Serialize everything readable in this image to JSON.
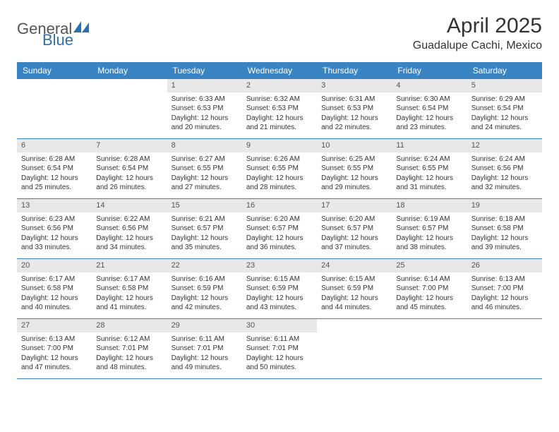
{
  "logo": {
    "text1": "General",
    "text2": "Blue",
    "color1": "#6b6b6b",
    "color2": "#2f6fb0",
    "accent": "#2f6fb0"
  },
  "title": "April 2025",
  "location": "Guadalupe Cachi, Mexico",
  "header_bg": "#3b84c4",
  "daynum_bg": "#e8e8e8",
  "border_color": "#3b84c4",
  "weekdays": [
    "Sunday",
    "Monday",
    "Tuesday",
    "Wednesday",
    "Thursday",
    "Friday",
    "Saturday"
  ],
  "weeks": [
    [
      {
        "n": "",
        "lines": []
      },
      {
        "n": "",
        "lines": []
      },
      {
        "n": "1",
        "lines": [
          "Sunrise: 6:33 AM",
          "Sunset: 6:53 PM",
          "Daylight: 12 hours and 20 minutes."
        ]
      },
      {
        "n": "2",
        "lines": [
          "Sunrise: 6:32 AM",
          "Sunset: 6:53 PM",
          "Daylight: 12 hours and 21 minutes."
        ]
      },
      {
        "n": "3",
        "lines": [
          "Sunrise: 6:31 AM",
          "Sunset: 6:53 PM",
          "Daylight: 12 hours and 22 minutes."
        ]
      },
      {
        "n": "4",
        "lines": [
          "Sunrise: 6:30 AM",
          "Sunset: 6:54 PM",
          "Daylight: 12 hours and 23 minutes."
        ]
      },
      {
        "n": "5",
        "lines": [
          "Sunrise: 6:29 AM",
          "Sunset: 6:54 PM",
          "Daylight: 12 hours and 24 minutes."
        ]
      }
    ],
    [
      {
        "n": "6",
        "lines": [
          "Sunrise: 6:28 AM",
          "Sunset: 6:54 PM",
          "Daylight: 12 hours and 25 minutes."
        ]
      },
      {
        "n": "7",
        "lines": [
          "Sunrise: 6:28 AM",
          "Sunset: 6:54 PM",
          "Daylight: 12 hours and 26 minutes."
        ]
      },
      {
        "n": "8",
        "lines": [
          "Sunrise: 6:27 AM",
          "Sunset: 6:55 PM",
          "Daylight: 12 hours and 27 minutes."
        ]
      },
      {
        "n": "9",
        "lines": [
          "Sunrise: 6:26 AM",
          "Sunset: 6:55 PM",
          "Daylight: 12 hours and 28 minutes."
        ]
      },
      {
        "n": "10",
        "lines": [
          "Sunrise: 6:25 AM",
          "Sunset: 6:55 PM",
          "Daylight: 12 hours and 29 minutes."
        ]
      },
      {
        "n": "11",
        "lines": [
          "Sunrise: 6:24 AM",
          "Sunset: 6:55 PM",
          "Daylight: 12 hours and 31 minutes."
        ]
      },
      {
        "n": "12",
        "lines": [
          "Sunrise: 6:24 AM",
          "Sunset: 6:56 PM",
          "Daylight: 12 hours and 32 minutes."
        ]
      }
    ],
    [
      {
        "n": "13",
        "lines": [
          "Sunrise: 6:23 AM",
          "Sunset: 6:56 PM",
          "Daylight: 12 hours and 33 minutes."
        ]
      },
      {
        "n": "14",
        "lines": [
          "Sunrise: 6:22 AM",
          "Sunset: 6:56 PM",
          "Daylight: 12 hours and 34 minutes."
        ]
      },
      {
        "n": "15",
        "lines": [
          "Sunrise: 6:21 AM",
          "Sunset: 6:57 PM",
          "Daylight: 12 hours and 35 minutes."
        ]
      },
      {
        "n": "16",
        "lines": [
          "Sunrise: 6:20 AM",
          "Sunset: 6:57 PM",
          "Daylight: 12 hours and 36 minutes."
        ]
      },
      {
        "n": "17",
        "lines": [
          "Sunrise: 6:20 AM",
          "Sunset: 6:57 PM",
          "Daylight: 12 hours and 37 minutes."
        ]
      },
      {
        "n": "18",
        "lines": [
          "Sunrise: 6:19 AM",
          "Sunset: 6:57 PM",
          "Daylight: 12 hours and 38 minutes."
        ]
      },
      {
        "n": "19",
        "lines": [
          "Sunrise: 6:18 AM",
          "Sunset: 6:58 PM",
          "Daylight: 12 hours and 39 minutes."
        ]
      }
    ],
    [
      {
        "n": "20",
        "lines": [
          "Sunrise: 6:17 AM",
          "Sunset: 6:58 PM",
          "Daylight: 12 hours and 40 minutes."
        ]
      },
      {
        "n": "21",
        "lines": [
          "Sunrise: 6:17 AM",
          "Sunset: 6:58 PM",
          "Daylight: 12 hours and 41 minutes."
        ]
      },
      {
        "n": "22",
        "lines": [
          "Sunrise: 6:16 AM",
          "Sunset: 6:59 PM",
          "Daylight: 12 hours and 42 minutes."
        ]
      },
      {
        "n": "23",
        "lines": [
          "Sunrise: 6:15 AM",
          "Sunset: 6:59 PM",
          "Daylight: 12 hours and 43 minutes."
        ]
      },
      {
        "n": "24",
        "lines": [
          "Sunrise: 6:15 AM",
          "Sunset: 6:59 PM",
          "Daylight: 12 hours and 44 minutes."
        ]
      },
      {
        "n": "25",
        "lines": [
          "Sunrise: 6:14 AM",
          "Sunset: 7:00 PM",
          "Daylight: 12 hours and 45 minutes."
        ]
      },
      {
        "n": "26",
        "lines": [
          "Sunrise: 6:13 AM",
          "Sunset: 7:00 PM",
          "Daylight: 12 hours and 46 minutes."
        ]
      }
    ],
    [
      {
        "n": "27",
        "lines": [
          "Sunrise: 6:13 AM",
          "Sunset: 7:00 PM",
          "Daylight: 12 hours and 47 minutes."
        ]
      },
      {
        "n": "28",
        "lines": [
          "Sunrise: 6:12 AM",
          "Sunset: 7:01 PM",
          "Daylight: 12 hours and 48 minutes."
        ]
      },
      {
        "n": "29",
        "lines": [
          "Sunrise: 6:11 AM",
          "Sunset: 7:01 PM",
          "Daylight: 12 hours and 49 minutes."
        ]
      },
      {
        "n": "30",
        "lines": [
          "Sunrise: 6:11 AM",
          "Sunset: 7:01 PM",
          "Daylight: 12 hours and 50 minutes."
        ]
      },
      {
        "n": "",
        "lines": []
      },
      {
        "n": "",
        "lines": []
      },
      {
        "n": "",
        "lines": []
      }
    ]
  ]
}
